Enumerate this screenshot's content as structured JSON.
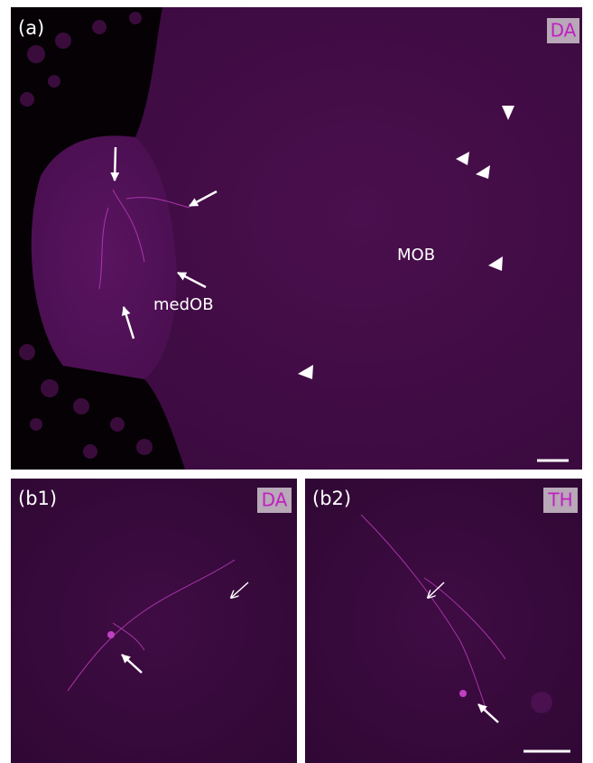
{
  "panels": [
    {
      "label": "(a)",
      "stain": "DA",
      "regions": [
        "MOB",
        "medOB"
      ]
    },
    {
      "label": "(b1)",
      "stain": "DA"
    },
    {
      "label": "(b2)",
      "stain": "TH"
    }
  ]
}
